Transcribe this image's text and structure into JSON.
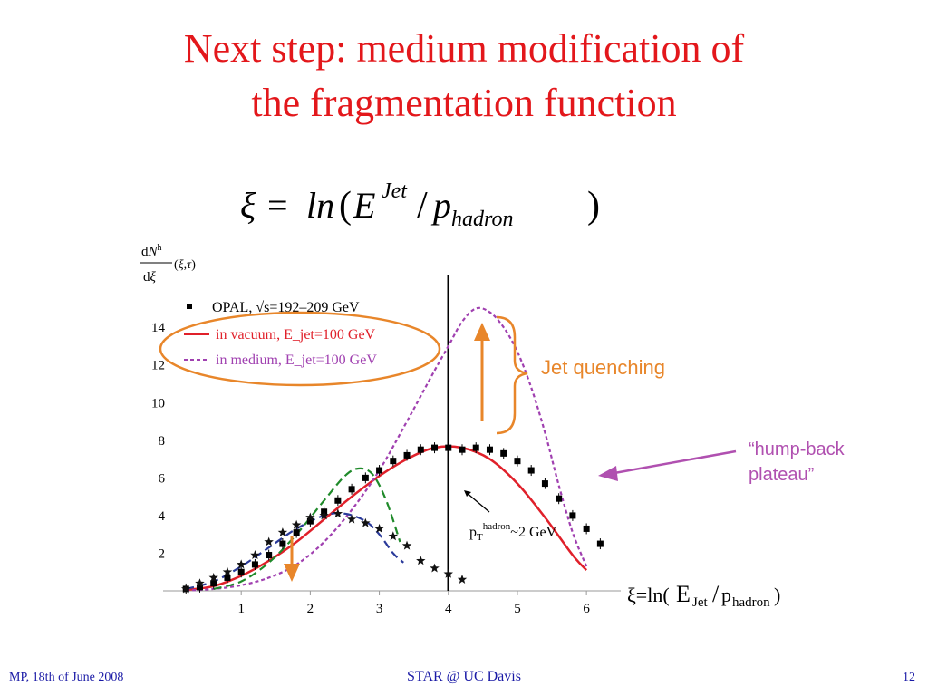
{
  "slide": {
    "title_line1": "Next step: medium modification of",
    "title_line2": "the fragmentation function",
    "formula": "ξ = ln(E^Jet / p_hadron)",
    "footer_left": "MP, 18th of June 2008",
    "footer_center": "STAR @ UC Davis",
    "footer_right": "12"
  },
  "colors": {
    "title": "#e3171b",
    "vacuum": "#e0202a",
    "medium": "#a040b0",
    "green_curve": "#1f8a2a",
    "blue_curve": "#2a3a9a",
    "annotation_orange": "#e8862a",
    "annotation_purple": "#b050b0",
    "footer": "#1a1aa6"
  },
  "chart_data": {
    "type": "line",
    "ylabel": "dN^h/dξ(ξ,τ)",
    "xlabel": "ξ=ln(E_Jet/p_hadron)",
    "xticks": [
      1,
      2,
      3,
      4,
      5,
      6
    ],
    "yticks": [
      2,
      4,
      6,
      8,
      10,
      12,
      14
    ],
    "xlim": [
      0,
      6.3
    ],
    "ylim": [
      0,
      15.5
    ],
    "legend": {
      "opal": "OPAL, √s=192–209 GeV",
      "vacuum": "in vacuum, E_jet=100 GeV",
      "medium": "in medium, E_jet=100 GeV"
    },
    "series": [
      {
        "name": "OPAL, √s=192–209 GeV",
        "kind": "points",
        "x": [
          0.2,
          0.4,
          0.6,
          0.8,
          1.0,
          1.2,
          1.4,
          1.6,
          1.8,
          2.0,
          2.2,
          2.4,
          2.6,
          2.8,
          3.0,
          3.2,
          3.4,
          3.6,
          3.8,
          4.0,
          4.2,
          4.4,
          4.6,
          4.8,
          5.0,
          5.2,
          5.4,
          5.6,
          5.8,
          6.0,
          6.2
        ],
        "y": [
          0.1,
          0.2,
          0.4,
          0.7,
          1.0,
          1.4,
          1.9,
          2.5,
          3.1,
          3.7,
          4.2,
          4.8,
          5.4,
          6.0,
          6.4,
          6.9,
          7.2,
          7.5,
          7.6,
          7.6,
          7.5,
          7.6,
          7.5,
          7.3,
          6.9,
          6.4,
          5.7,
          4.9,
          4.0,
          3.3,
          2.5
        ]
      },
      {
        "name": "in vacuum, E_jet=100 GeV",
        "kind": "line",
        "x": [
          0.2,
          0.6,
          1.0,
          1.4,
          1.8,
          2.2,
          2.6,
          3.0,
          3.4,
          3.8,
          4.2,
          4.6,
          5.0,
          5.4,
          5.8,
          6.0
        ],
        "y": [
          0.05,
          0.25,
          0.8,
          1.6,
          2.6,
          3.8,
          5.0,
          6.1,
          7.0,
          7.6,
          7.6,
          7.0,
          5.7,
          3.9,
          1.9,
          1.1
        ]
      },
      {
        "name": "in medium, E_jet=100 GeV",
        "kind": "dashed",
        "x": [
          0.2,
          0.6,
          1.0,
          1.4,
          1.8,
          2.2,
          2.6,
          3.0,
          3.4,
          3.8,
          4.0,
          4.2,
          4.4,
          4.6,
          4.8,
          5.0,
          5.2,
          5.4,
          5.6,
          5.8,
          6.0
        ],
        "y": [
          0.02,
          0.1,
          0.3,
          0.7,
          1.4,
          2.6,
          4.3,
          6.4,
          9.0,
          11.7,
          13.0,
          14.3,
          15.0,
          14.8,
          14.0,
          12.7,
          10.8,
          8.4,
          5.6,
          3.1,
          1.3
        ]
      },
      {
        "name": "",
        "kind": "dashed-green",
        "x": [
          0.6,
          1.0,
          1.4,
          1.8,
          2.2,
          2.5,
          2.7,
          2.9,
          3.1,
          3.3
        ],
        "y": [
          0.1,
          0.5,
          1.5,
          3.0,
          4.8,
          6.1,
          6.5,
          6.2,
          4.8,
          2.6
        ]
      },
      {
        "name": "",
        "kind": "dashed-blue",
        "x": [
          0.2,
          0.6,
          1.0,
          1.4,
          1.8,
          2.2,
          2.5,
          2.8,
          3.0,
          3.2,
          3.35
        ],
        "y": [
          0.1,
          0.5,
          1.3,
          2.3,
          3.3,
          4.0,
          4.1,
          3.7,
          3.0,
          2.0,
          1.5
        ]
      },
      {
        "name": "",
        "kind": "stars",
        "x": [
          0.2,
          0.4,
          0.6,
          0.8,
          1.0,
          1.2,
          1.4,
          1.6,
          1.8,
          2.0,
          2.2,
          2.4,
          2.6,
          2.8,
          3.0,
          3.2,
          3.4,
          3.6,
          3.8,
          4.0,
          4.2
        ],
        "y": [
          0.1,
          0.4,
          0.7,
          1.0,
          1.4,
          1.9,
          2.6,
          3.1,
          3.5,
          3.9,
          4.0,
          4.1,
          3.8,
          3.6,
          3.3,
          2.9,
          2.4,
          1.6,
          1.2,
          0.9,
          0.6
        ]
      }
    ],
    "vertical_line_x": 4,
    "annotations": {
      "jet_quenching": "Jet quenching",
      "hump_back_line1": "“hump-back",
      "hump_back_line2": "plateau”",
      "pt_hadron_prefix": "p",
      "pt_hadron_sub": "T",
      "pt_hadron_sup": "hadron",
      "pt_hadron_value": "~2 GeV"
    }
  }
}
